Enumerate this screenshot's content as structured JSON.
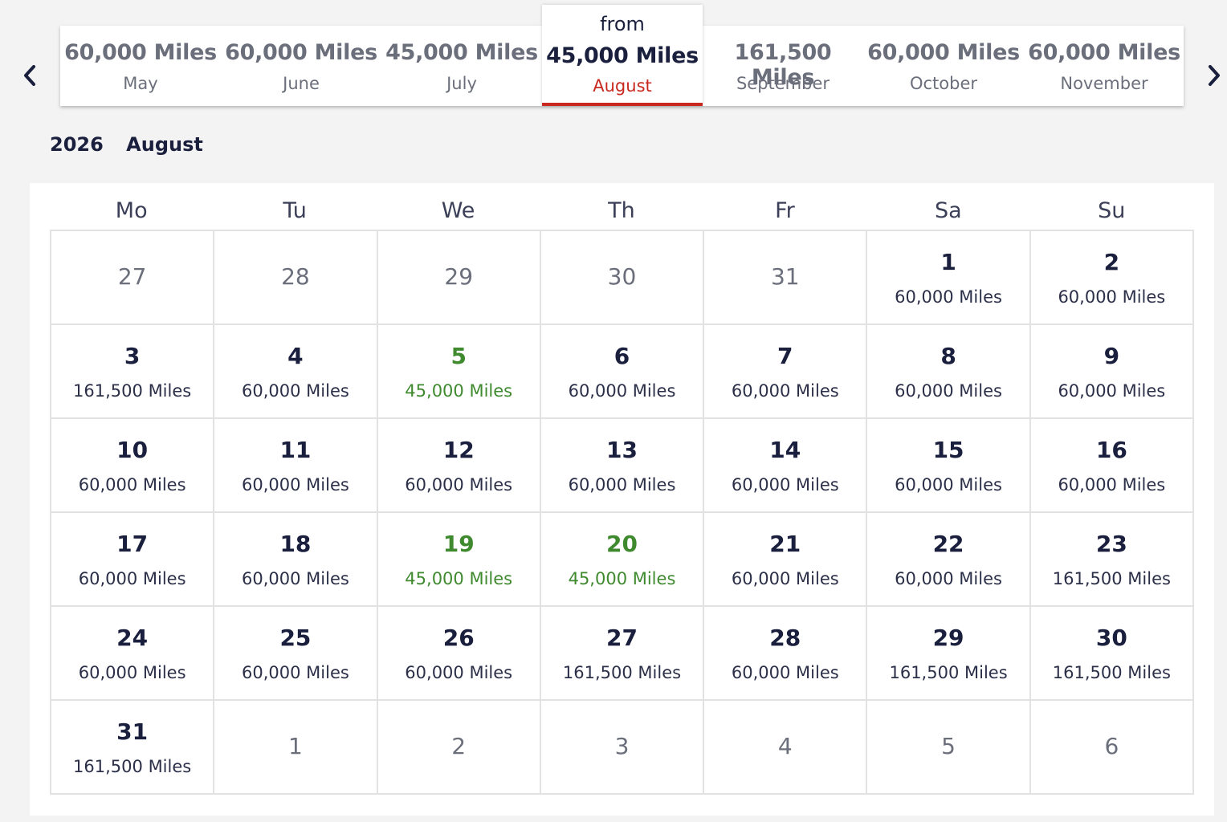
{
  "nav": {
    "prev_icon": "chevron-left-icon",
    "next_icon": "chevron-right-icon"
  },
  "months": [
    {
      "miles": "60,000 Miles",
      "name": "May"
    },
    {
      "miles": "60,000 Miles",
      "name": "June"
    },
    {
      "miles": "45,000 Miles",
      "name": "July"
    },
    {
      "miles": "45,000 Miles",
      "name": "August",
      "prefix": "from",
      "selected": true
    },
    {
      "miles": "161,500 Miles",
      "name": "September"
    },
    {
      "miles": "60,000 Miles",
      "name": "October"
    },
    {
      "miles": "60,000 Miles",
      "name": "November"
    }
  ],
  "heading": {
    "year": "2026",
    "month": "August"
  },
  "weekdays": [
    "Mo",
    "Tu",
    "We",
    "Th",
    "Fr",
    "Sa",
    "Su"
  ],
  "colors": {
    "accent_red": "#c8281e",
    "cheapest_green": "#3f8a2f",
    "text_navy": "#1a1f3d"
  },
  "days": [
    {
      "day": "27",
      "out": true
    },
    {
      "day": "28",
      "out": true
    },
    {
      "day": "29",
      "out": true
    },
    {
      "day": "30",
      "out": true
    },
    {
      "day": "31",
      "out": true
    },
    {
      "day": "1",
      "price": "60,000 Miles"
    },
    {
      "day": "2",
      "price": "60,000 Miles"
    },
    {
      "day": "3",
      "price": "161,500 Miles"
    },
    {
      "day": "4",
      "price": "60,000 Miles"
    },
    {
      "day": "5",
      "price": "45,000 Miles",
      "cheap": true
    },
    {
      "day": "6",
      "price": "60,000 Miles"
    },
    {
      "day": "7",
      "price": "60,000 Miles"
    },
    {
      "day": "8",
      "price": "60,000 Miles"
    },
    {
      "day": "9",
      "price": "60,000 Miles"
    },
    {
      "day": "10",
      "price": "60,000 Miles"
    },
    {
      "day": "11",
      "price": "60,000 Miles"
    },
    {
      "day": "12",
      "price": "60,000 Miles"
    },
    {
      "day": "13",
      "price": "60,000 Miles"
    },
    {
      "day": "14",
      "price": "60,000 Miles"
    },
    {
      "day": "15",
      "price": "60,000 Miles"
    },
    {
      "day": "16",
      "price": "60,000 Miles"
    },
    {
      "day": "17",
      "price": "60,000 Miles"
    },
    {
      "day": "18",
      "price": "60,000 Miles"
    },
    {
      "day": "19",
      "price": "45,000 Miles",
      "cheap": true
    },
    {
      "day": "20",
      "price": "45,000 Miles",
      "cheap": true
    },
    {
      "day": "21",
      "price": "60,000 Miles"
    },
    {
      "day": "22",
      "price": "60,000 Miles"
    },
    {
      "day": "23",
      "price": "161,500 Miles"
    },
    {
      "day": "24",
      "price": "60,000 Miles"
    },
    {
      "day": "25",
      "price": "60,000 Miles"
    },
    {
      "day": "26",
      "price": "60,000 Miles"
    },
    {
      "day": "27",
      "price": "161,500 Miles"
    },
    {
      "day": "28",
      "price": "60,000 Miles"
    },
    {
      "day": "29",
      "price": "161,500 Miles"
    },
    {
      "day": "30",
      "price": "161,500 Miles"
    },
    {
      "day": "31",
      "price": "161,500 Miles"
    },
    {
      "day": "1",
      "out": true
    },
    {
      "day": "2",
      "out": true
    },
    {
      "day": "3",
      "out": true
    },
    {
      "day": "4",
      "out": true
    },
    {
      "day": "5",
      "out": true
    },
    {
      "day": "6",
      "out": true
    }
  ]
}
